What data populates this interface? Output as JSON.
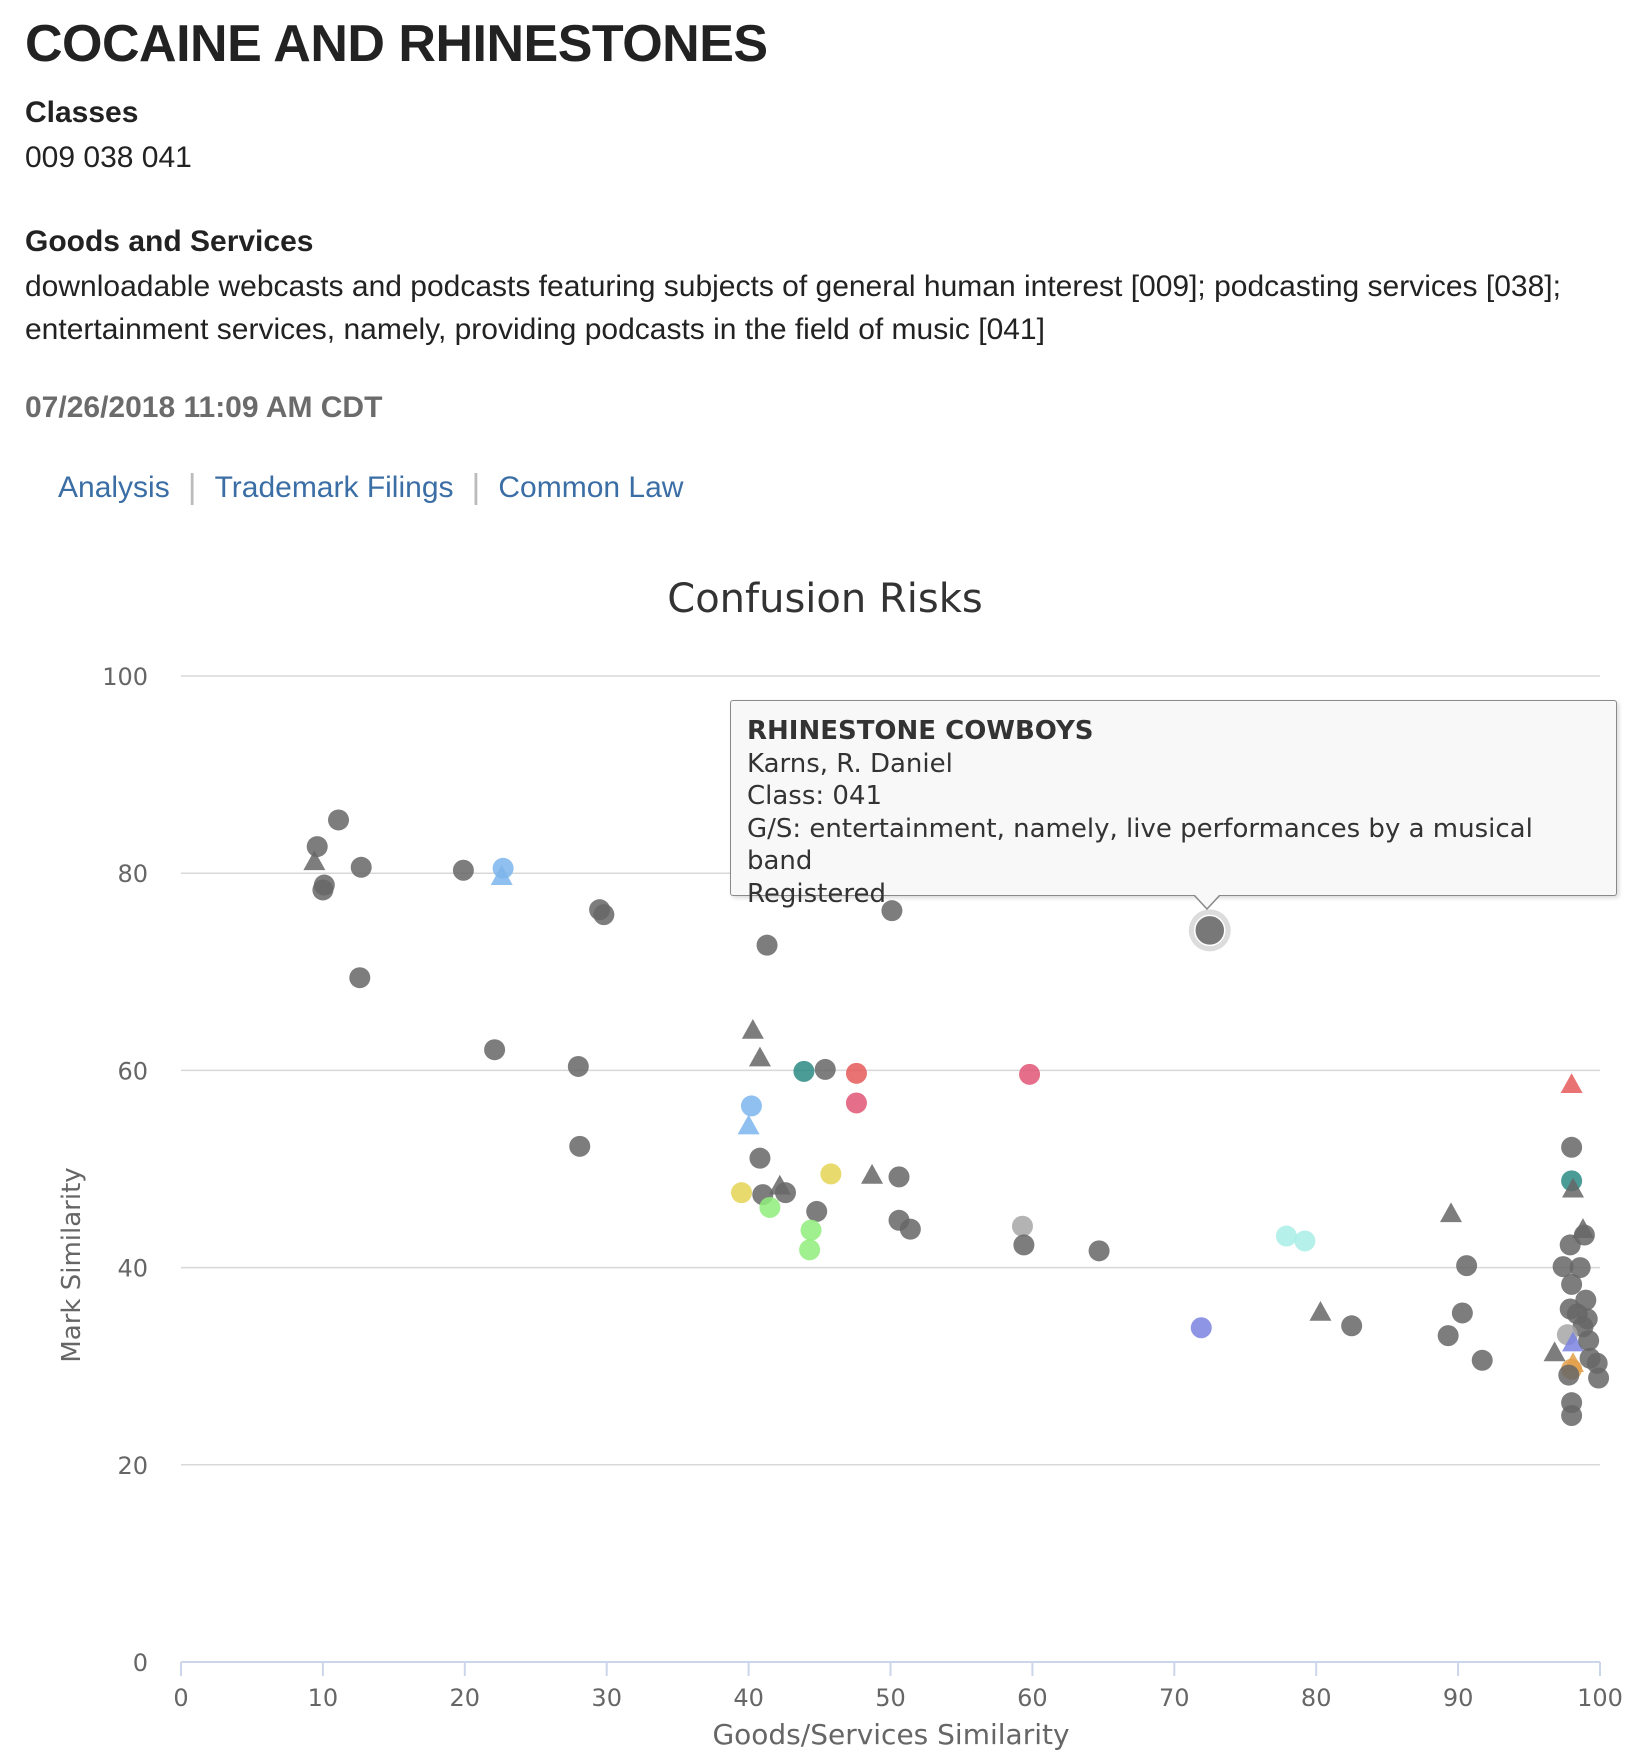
{
  "header": {
    "title": "COCAINE AND RHINESTONES",
    "classes_label": "Classes",
    "classes_value": "009 038 041",
    "gs_label": "Goods and Services",
    "gs_value": "downloadable webcasts and podcasts featuring subjects of general human interest [009]; podcasting services [038]; entertainment services, namely, providing podcasts in the field of music [041]",
    "timestamp": "07/26/2018 11:09 AM CDT"
  },
  "nav": {
    "analysis": "Analysis",
    "filings": "Trademark Filings",
    "common_law": "Common Law",
    "separator": "|"
  },
  "tooltip": {
    "title": "RHINESTONE COWBOYS",
    "owner": "Karns, R. Daniel",
    "class": "Class: 041",
    "gs": "G/S: entertainment, namely, live performances by a musical band",
    "status": "Registered"
  },
  "colors": {
    "gray": "#666666",
    "lightgray": "#a6a6a6",
    "blue": "#7cb5ec",
    "teal": "#2b8a85",
    "red": "#e55b5b",
    "pink": "#e05575",
    "yellow": "#e4d354",
    "green": "#90ed7d",
    "cyan": "#a8ede8",
    "purple": "#7a82e0",
    "orange": "#e3a04a",
    "axis": "#ccd6eb",
    "grid": "#d8d8d8",
    "nav_link": "#3a6ea5"
  },
  "chart_data": {
    "type": "scatter",
    "title": "Confusion Risks",
    "xlabel": "Goods/Services Similarity",
    "ylabel": "Mark Similarity",
    "xlim": [
      0,
      100
    ],
    "ylim": [
      0,
      100
    ],
    "xticks": [
      0,
      10,
      20,
      30,
      40,
      50,
      60,
      70,
      80,
      90,
      100
    ],
    "yticks": [
      0,
      20,
      40,
      60,
      80,
      100
    ],
    "grid": "horizontal",
    "legend": "none",
    "highlighted": {
      "x": 72.5,
      "y": 74.2,
      "color": "gray",
      "shape": "circle"
    },
    "points": [
      {
        "x": 9.6,
        "y": 82.7,
        "color": "gray",
        "shape": "circle"
      },
      {
        "x": 9.4,
        "y": 81.2,
        "color": "gray",
        "shape": "triangle"
      },
      {
        "x": 11.1,
        "y": 85.4,
        "color": "gray",
        "shape": "circle"
      },
      {
        "x": 10.1,
        "y": 78.8,
        "color": "gray",
        "shape": "circle"
      },
      {
        "x": 10.0,
        "y": 78.3,
        "color": "gray",
        "shape": "circle"
      },
      {
        "x": 12.7,
        "y": 80.6,
        "color": "gray",
        "shape": "circle"
      },
      {
        "x": 12.6,
        "y": 69.4,
        "color": "gray",
        "shape": "circle"
      },
      {
        "x": 19.9,
        "y": 80.3,
        "color": "gray",
        "shape": "circle"
      },
      {
        "x": 22.7,
        "y": 80.5,
        "color": "blue",
        "shape": "circle"
      },
      {
        "x": 22.6,
        "y": 79.7,
        "color": "blue",
        "shape": "triangle"
      },
      {
        "x": 22.1,
        "y": 62.1,
        "color": "gray",
        "shape": "circle"
      },
      {
        "x": 28.0,
        "y": 60.4,
        "color": "gray",
        "shape": "circle"
      },
      {
        "x": 28.1,
        "y": 52.3,
        "color": "gray",
        "shape": "circle"
      },
      {
        "x": 29.5,
        "y": 76.3,
        "color": "gray",
        "shape": "circle"
      },
      {
        "x": 29.8,
        "y": 75.8,
        "color": "gray",
        "shape": "circle"
      },
      {
        "x": 41.3,
        "y": 72.7,
        "color": "gray",
        "shape": "circle"
      },
      {
        "x": 40.3,
        "y": 64.1,
        "color": "gray",
        "shape": "triangle"
      },
      {
        "x": 40.8,
        "y": 61.3,
        "color": "gray",
        "shape": "triangle"
      },
      {
        "x": 43.9,
        "y": 59.9,
        "color": "teal",
        "shape": "circle"
      },
      {
        "x": 45.4,
        "y": 60.1,
        "color": "gray",
        "shape": "circle"
      },
      {
        "x": 47.6,
        "y": 59.7,
        "color": "red",
        "shape": "circle"
      },
      {
        "x": 47.6,
        "y": 56.7,
        "color": "pink",
        "shape": "circle"
      },
      {
        "x": 40.2,
        "y": 56.4,
        "color": "blue",
        "shape": "circle"
      },
      {
        "x": 40.0,
        "y": 54.4,
        "color": "blue",
        "shape": "triangle"
      },
      {
        "x": 40.8,
        "y": 51.1,
        "color": "gray",
        "shape": "circle"
      },
      {
        "x": 39.5,
        "y": 47.6,
        "color": "yellow",
        "shape": "circle"
      },
      {
        "x": 41.0,
        "y": 47.4,
        "color": "gray",
        "shape": "circle"
      },
      {
        "x": 42.2,
        "y": 48.3,
        "color": "gray",
        "shape": "triangle"
      },
      {
        "x": 42.6,
        "y": 47.6,
        "color": "gray",
        "shape": "circle"
      },
      {
        "x": 41.5,
        "y": 46.1,
        "color": "green",
        "shape": "circle"
      },
      {
        "x": 45.8,
        "y": 49.5,
        "color": "yellow",
        "shape": "circle"
      },
      {
        "x": 44.8,
        "y": 45.7,
        "color": "gray",
        "shape": "circle"
      },
      {
        "x": 44.4,
        "y": 43.8,
        "color": "green",
        "shape": "circle"
      },
      {
        "x": 44.3,
        "y": 41.8,
        "color": "green",
        "shape": "circle"
      },
      {
        "x": 48.7,
        "y": 49.4,
        "color": "gray",
        "shape": "triangle"
      },
      {
        "x": 50.6,
        "y": 49.2,
        "color": "gray",
        "shape": "circle"
      },
      {
        "x": 50.6,
        "y": 44.8,
        "color": "gray",
        "shape": "circle"
      },
      {
        "x": 51.4,
        "y": 43.9,
        "color": "gray",
        "shape": "circle"
      },
      {
        "x": 50.1,
        "y": 76.2,
        "color": "gray",
        "shape": "circle"
      },
      {
        "x": 59.8,
        "y": 59.6,
        "color": "pink",
        "shape": "circle"
      },
      {
        "x": 59.3,
        "y": 44.2,
        "color": "lightgray",
        "shape": "circle"
      },
      {
        "x": 59.4,
        "y": 42.3,
        "color": "gray",
        "shape": "circle"
      },
      {
        "x": 64.7,
        "y": 41.7,
        "color": "gray",
        "shape": "circle"
      },
      {
        "x": 71.9,
        "y": 33.9,
        "color": "purple",
        "shape": "circle"
      },
      {
        "x": 77.9,
        "y": 43.2,
        "color": "cyan",
        "shape": "circle"
      },
      {
        "x": 79.2,
        "y": 42.7,
        "color": "cyan",
        "shape": "circle"
      },
      {
        "x": 80.3,
        "y": 35.5,
        "color": "gray",
        "shape": "triangle"
      },
      {
        "x": 82.5,
        "y": 34.1,
        "color": "gray",
        "shape": "circle"
      },
      {
        "x": 89.5,
        "y": 45.5,
        "color": "gray",
        "shape": "triangle"
      },
      {
        "x": 90.6,
        "y": 40.2,
        "color": "gray",
        "shape": "circle"
      },
      {
        "x": 90.3,
        "y": 35.4,
        "color": "gray",
        "shape": "circle"
      },
      {
        "x": 89.3,
        "y": 33.1,
        "color": "gray",
        "shape": "circle"
      },
      {
        "x": 91.7,
        "y": 30.6,
        "color": "gray",
        "shape": "circle"
      },
      {
        "x": 98.0,
        "y": 58.6,
        "color": "red",
        "shape": "triangle"
      },
      {
        "x": 98.0,
        "y": 52.2,
        "color": "gray",
        "shape": "circle"
      },
      {
        "x": 98.0,
        "y": 48.8,
        "color": "teal",
        "shape": "circle"
      },
      {
        "x": 98.1,
        "y": 48.0,
        "color": "gray",
        "shape": "triangle"
      },
      {
        "x": 98.8,
        "y": 43.9,
        "color": "gray",
        "shape": "triangle"
      },
      {
        "x": 98.9,
        "y": 43.3,
        "color": "gray",
        "shape": "circle"
      },
      {
        "x": 97.9,
        "y": 42.3,
        "color": "gray",
        "shape": "circle"
      },
      {
        "x": 97.4,
        "y": 40.1,
        "color": "gray",
        "shape": "circle"
      },
      {
        "x": 98.6,
        "y": 40.0,
        "color": "gray",
        "shape": "circle"
      },
      {
        "x": 98.0,
        "y": 38.3,
        "color": "gray",
        "shape": "circle"
      },
      {
        "x": 99.0,
        "y": 36.7,
        "color": "gray",
        "shape": "circle"
      },
      {
        "x": 97.9,
        "y": 35.8,
        "color": "gray",
        "shape": "circle"
      },
      {
        "x": 98.4,
        "y": 35.3,
        "color": "gray",
        "shape": "circle"
      },
      {
        "x": 99.1,
        "y": 34.8,
        "color": "gray",
        "shape": "circle"
      },
      {
        "x": 98.8,
        "y": 34.0,
        "color": "gray",
        "shape": "circle"
      },
      {
        "x": 97.7,
        "y": 33.2,
        "color": "lightgray",
        "shape": "circle"
      },
      {
        "x": 98.1,
        "y": 32.4,
        "color": "purple",
        "shape": "triangle"
      },
      {
        "x": 99.2,
        "y": 32.6,
        "color": "gray",
        "shape": "circle"
      },
      {
        "x": 96.8,
        "y": 31.4,
        "color": "gray",
        "shape": "triangle"
      },
      {
        "x": 99.3,
        "y": 30.8,
        "color": "gray",
        "shape": "circle"
      },
      {
        "x": 98.1,
        "y": 30.3,
        "color": "orange",
        "shape": "triangle"
      },
      {
        "x": 99.8,
        "y": 30.3,
        "color": "gray",
        "shape": "circle"
      },
      {
        "x": 98.0,
        "y": 29.7,
        "color": "orange",
        "shape": "circle"
      },
      {
        "x": 97.8,
        "y": 29.1,
        "color": "gray",
        "shape": "circle"
      },
      {
        "x": 99.9,
        "y": 28.8,
        "color": "gray",
        "shape": "circle"
      },
      {
        "x": 98.0,
        "y": 26.3,
        "color": "gray",
        "shape": "circle"
      },
      {
        "x": 98.0,
        "y": 25.0,
        "color": "gray",
        "shape": "circle"
      }
    ]
  }
}
